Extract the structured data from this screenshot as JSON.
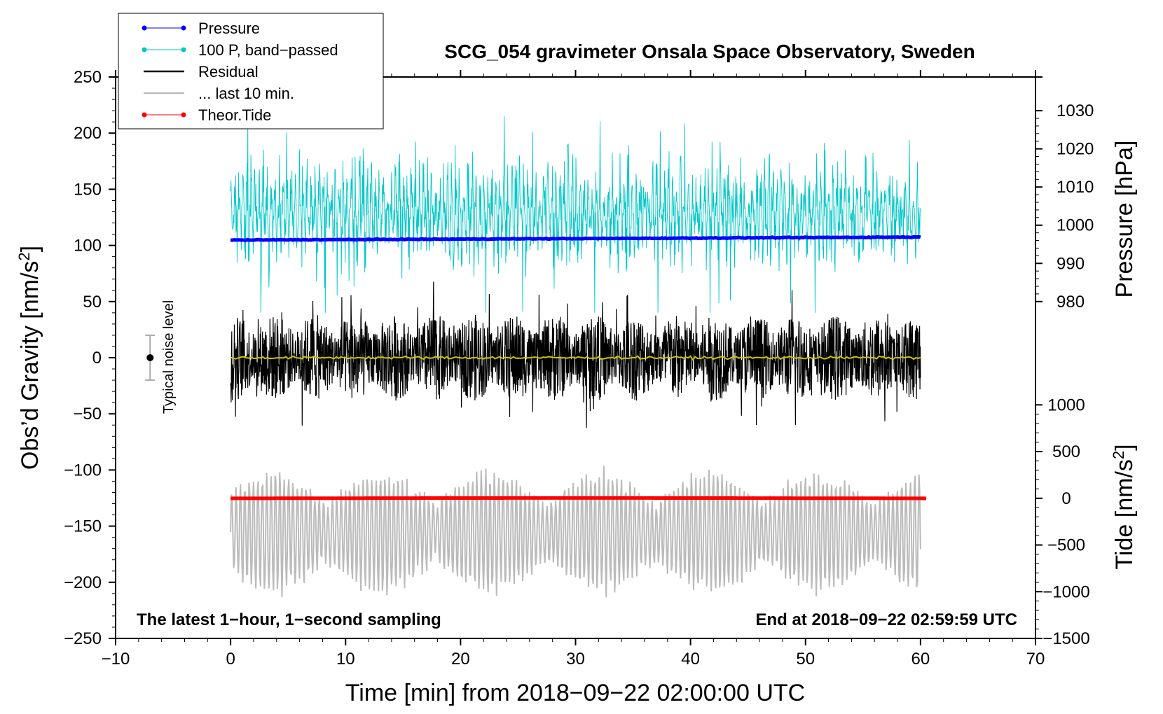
{
  "chart_data": {
    "type": "line",
    "title": "SCG_054 gravimeter Onsala Space Observatory, Sweden",
    "xlabel": "Time [min] from 2018−09−22 02:00:00 UTC",
    "ylabel_left": "Obs’d Gravity [nm/s",
    "ylabel_left_sup": "2",
    "ylabel_left_close": "]",
    "ylabel_right_pressure": "Pressure [hPa]",
    "ylabel_right_tide": "Tide [nm/s",
    "ylabel_right_tide_sup": "2",
    "ylabel_right_tide_close": "]",
    "xlim": [
      -10,
      70
    ],
    "ylim_left": [
      -250,
      250
    ],
    "pressure_scale": {
      "min": 980,
      "max": 1030,
      "maps_to_left_y": [
        50,
        220
      ]
    },
    "tide_scale": {
      "min": -1500,
      "max": 1000,
      "maps_to_left_y": [
        -250,
        -42
      ]
    },
    "x_ticks": [
      "−10",
      "0",
      "10",
      "20",
      "30",
      "40",
      "50",
      "60",
      "70"
    ],
    "x_tick_values": [
      -10,
      0,
      10,
      20,
      30,
      40,
      50,
      60,
      70
    ],
    "y_ticks_left": [
      "250",
      "200",
      "150",
      "100",
      "50",
      "0",
      "−50",
      "−100",
      "−150",
      "−200",
      "−250"
    ],
    "y_tick_values_left": [
      250,
      200,
      150,
      100,
      50,
      0,
      -50,
      -100,
      -150,
      -200,
      -250
    ],
    "y_ticks_pressure": [
      "1030",
      "1020",
      "1010",
      "1000",
      "990",
      "980"
    ],
    "y_tick_values_pressure": [
      1030,
      1020,
      1010,
      1000,
      990,
      980
    ],
    "y_ticks_tide": [
      "1000",
      "500",
      "0",
      "−500",
      "−1000",
      "−1500"
    ],
    "y_tick_values_tide": [
      1000,
      500,
      0,
      -500,
      -1000,
      -1500
    ],
    "series": [
      {
        "name": "Pressure",
        "color": "#0000ff",
        "unit": "hPa",
        "x_range": [
          0,
          60
        ],
        "start": 996.1,
        "end": 996.9
      },
      {
        "name": "100 P, band−passed",
        "color": "#00c8c8",
        "unit": "nm/s2",
        "x_range": [
          0,
          60
        ],
        "baseline": 130,
        "typical_amplitude": 30,
        "min": 40,
        "max": 215
      },
      {
        "name": "Residual",
        "color": "#000000",
        "unit": "nm/s2",
        "x_range": [
          0,
          60
        ],
        "baseline": 0,
        "typical_amplitude": 35,
        "min": -80,
        "max": 75
      },
      {
        "name": "... last 10 min.",
        "color": "#bbbbbb",
        "unit": "nm/s2",
        "x_range": [
          0,
          60
        ],
        "baseline": -155,
        "typical_amplitude": 30,
        "min": -220,
        "max": -85
      },
      {
        "name": "Theor.Tide",
        "color": "#ff0000",
        "unit": "nm/s2",
        "x_range": [
          0,
          60.5
        ],
        "start": -1,
        "peak": 3,
        "end": -1
      }
    ],
    "smoothed_residual": {
      "color": "#c8c800",
      "value": 0
    },
    "noise_bar": {
      "label": "Typical noise level",
      "center": 0,
      "half_range": 20,
      "x": -7
    }
  },
  "annotations": {
    "bottom_left": "The latest 1−hour, 1−second sampling",
    "bottom_right": "End at 2018−09−22 02:59:59 UTC"
  },
  "legend": {
    "placement": "top-left",
    "items": [
      {
        "label": "Pressure",
        "color": "#0000ff",
        "marker": true
      },
      {
        "label": "100 P, band−passed",
        "color": "#00c8c8",
        "marker": true
      },
      {
        "label": "Residual",
        "color": "#000000",
        "marker": false
      },
      {
        "label": "... last 10 min.",
        "color": "#bbbbbb",
        "marker": false
      },
      {
        "label": "Theor.Tide",
        "color": "#ff0000",
        "marker": true
      }
    ]
  }
}
